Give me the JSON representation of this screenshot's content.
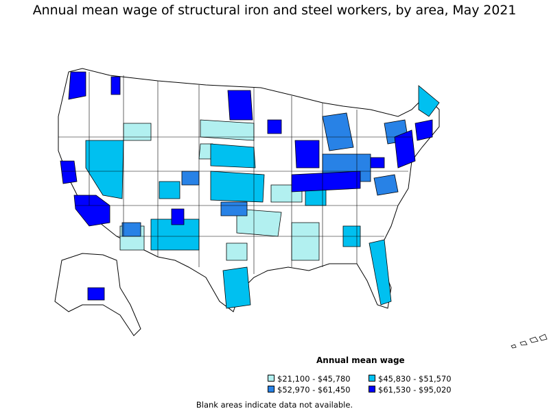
{
  "title": "Annual mean wage of structural iron and steel workers, by area, May 2021",
  "legend": {
    "title": "Annual mean wage",
    "items": [
      {
        "label": "$21,100 - $45,780",
        "color": "#b2f0f0"
      },
      {
        "label": "$45,830 - $51,570",
        "color": "#00c0f0"
      },
      {
        "label": "$52,970 - $61,450",
        "color": "#2882e6"
      },
      {
        "label": "$61,530 - $95,020",
        "color": "#0000ff"
      }
    ]
  },
  "note": "Blank areas indicate data not available.",
  "colors": {
    "blank": "#ffffff",
    "outline": "#000000"
  }
}
